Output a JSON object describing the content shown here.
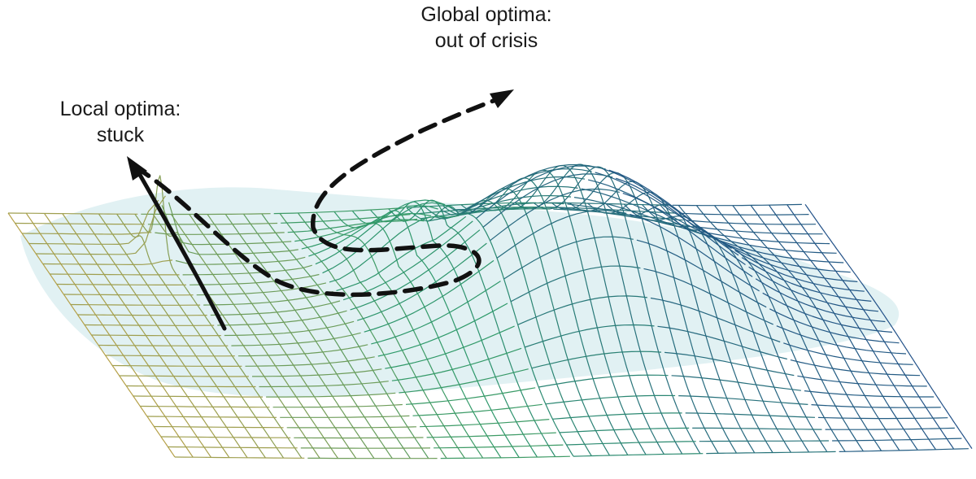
{
  "labels": {
    "global": {
      "line1": "Global optima:",
      "line2": "out of crisis"
    },
    "local": {
      "line1": "Local optima:",
      "line2": "stuck"
    }
  },
  "colors": {
    "low": "#e8a33d",
    "mid": "#2e9a6a",
    "high": "#1f3f8f",
    "shadow": "#d7ecef",
    "arrow": "#111111"
  },
  "icons": [
    "solid-arrow-icon",
    "dashed-arrow-icon"
  ]
}
